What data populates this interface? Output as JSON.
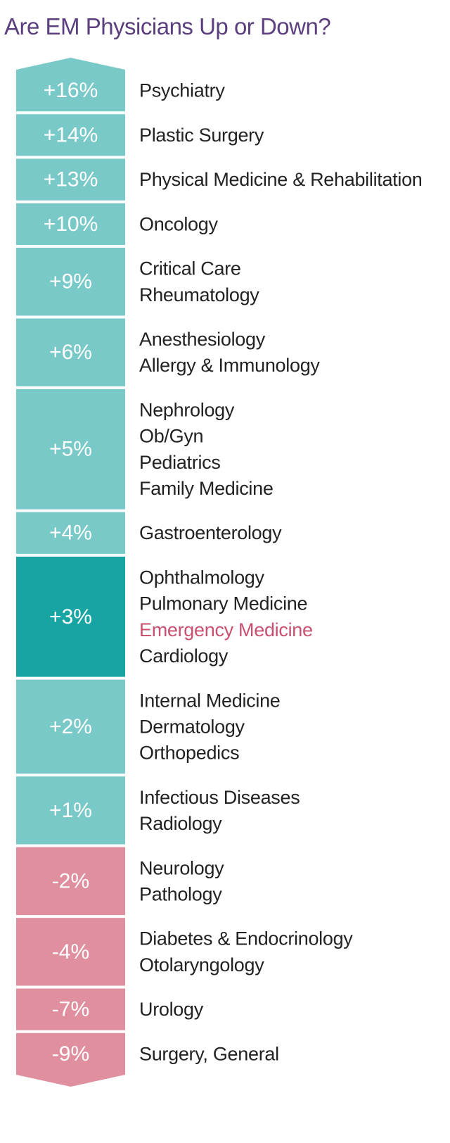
{
  "title": "Are EM Physicians Up or Down?",
  "colors": {
    "title": "#5b3f7e",
    "positive": "#78c9c8",
    "highlight": "#17a4a3",
    "negative": "#e08f9f",
    "text": "#222222",
    "highlight_text": "#c9506e"
  },
  "chart_data": {
    "type": "table",
    "title": "Are EM Physicians Up or Down?",
    "highlight": "Emergency Medicine",
    "rows": [
      {
        "value": 16,
        "label": "+16%",
        "specialties": [
          "Psychiatry"
        ]
      },
      {
        "value": 14,
        "label": "+14%",
        "specialties": [
          "Plastic Surgery"
        ]
      },
      {
        "value": 13,
        "label": "+13%",
        "specialties": [
          "Physical Medicine & Rehabilitation"
        ]
      },
      {
        "value": 10,
        "label": "+10%",
        "specialties": [
          "Oncology"
        ]
      },
      {
        "value": 9,
        "label": "+9%",
        "specialties": [
          "Critical Care",
          "Rheumatology"
        ]
      },
      {
        "value": 6,
        "label": "+6%",
        "specialties": [
          "Anesthesiology",
          "Allergy & Immunology"
        ]
      },
      {
        "value": 5,
        "label": "+5%",
        "specialties": [
          "Nephrology",
          "Ob/Gyn",
          "Pediatrics",
          "Family Medicine"
        ]
      },
      {
        "value": 4,
        "label": "+4%",
        "specialties": [
          "Gastroenterology"
        ]
      },
      {
        "value": 3,
        "label": "+3%",
        "specialties": [
          "Ophthalmology",
          "Pulmonary Medicine",
          "Emergency Medicine",
          "Cardiology"
        ]
      },
      {
        "value": 2,
        "label": "+2%",
        "specialties": [
          "Internal Medicine",
          "Dermatology",
          "Orthopedics"
        ]
      },
      {
        "value": 1,
        "label": "+1%",
        "specialties": [
          "Infectious Diseases",
          "Radiology"
        ]
      },
      {
        "value": -2,
        "label": "-2%",
        "specialties": [
          "Neurology",
          "Pathology"
        ]
      },
      {
        "value": -4,
        "label": "-4%",
        "specialties": [
          "Diabetes & Endocrinology",
          "Otolaryngology"
        ]
      },
      {
        "value": -7,
        "label": "-7%",
        "specialties": [
          "Urology"
        ]
      },
      {
        "value": -9,
        "label": "-9%",
        "specialties": [
          "Surgery, General"
        ]
      }
    ]
  }
}
